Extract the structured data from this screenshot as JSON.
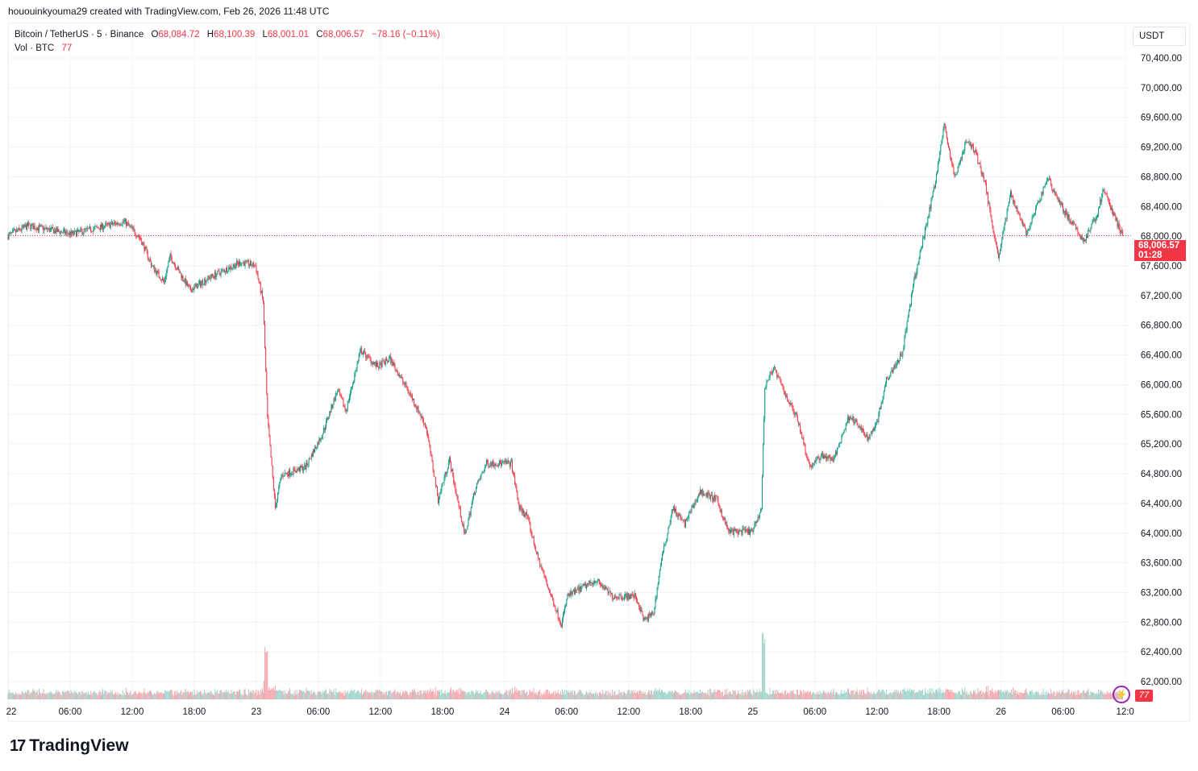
{
  "header": {
    "credit": "hououinkyouma29 created with TradingView.com, Feb 26, 2026 11:48 UTC"
  },
  "legend": {
    "symbol": "Bitcoin / TetherUS · 5 · Binance",
    "o_label": "O",
    "open": "68,084.72",
    "h_label": "H",
    "high": "68,100.39",
    "l_label": "L",
    "low": "68,001.01",
    "c_label": "C",
    "close": "68,006.57",
    "change": "−78.16 (−0.11%)",
    "vol_label": "Vol · BTC",
    "vol_value": "77"
  },
  "axis": {
    "currency": "USDT",
    "last_price": "68,006.57",
    "countdown": "01:28",
    "vol_badge": "77",
    "alert_icon": "lightning-icon"
  },
  "colors": {
    "up": "#089981",
    "down": "#f23645",
    "vol_up": "#9fd4cb",
    "vol_down": "#f5a6ad",
    "grid": "#f0f3fa"
  },
  "footer": {
    "logo_text": "TradingView"
  },
  "chart_data": {
    "type": "candlestick",
    "interval": "5m",
    "ylim": [
      61800,
      70600
    ],
    "y_ticks": [
      "70,400.00",
      "70,000.00",
      "69,600.00",
      "69,200.00",
      "68,800.00",
      "68,400.00",
      "68,000.00",
      "67,600.00",
      "67,200.00",
      "66,800.00",
      "66,400.00",
      "66,000.00",
      "65,600.00",
      "65,200.00",
      "64,800.00",
      "64,400.00",
      "64,000.00",
      "63,600.00",
      "63,200.00",
      "62,800.00",
      "62,400.00",
      "62,000.00"
    ],
    "x_ticks": [
      {
        "label": "22",
        "t": "02-22 00:00"
      },
      {
        "label": "06:00",
        "t": "02-22 06:00"
      },
      {
        "label": "12:00",
        "t": "02-22 12:00"
      },
      {
        "label": "18:00",
        "t": "02-22 18:00"
      },
      {
        "label": "23",
        "t": "02-23 00:00"
      },
      {
        "label": "06:00",
        "t": "02-23 06:00"
      },
      {
        "label": "12:00",
        "t": "02-23 12:00"
      },
      {
        "label": "18:00",
        "t": "02-23 18:00"
      },
      {
        "label": "24",
        "t": "02-24 00:00"
      },
      {
        "label": "06:00",
        "t": "02-24 06:00"
      },
      {
        "label": "12:00",
        "t": "02-24 12:00"
      },
      {
        "label": "18:00",
        "t": "02-24 18:00"
      },
      {
        "label": "25",
        "t": "02-25 00:00"
      },
      {
        "label": "06:00",
        "t": "02-25 06:00"
      },
      {
        "label": "12:00",
        "t": "02-25 12:00"
      },
      {
        "label": "18:00",
        "t": "02-25 18:00"
      },
      {
        "label": "26",
        "t": "02-26 00:00"
      },
      {
        "label": "06:00",
        "t": "02-26 06:00"
      },
      {
        "label": "12:0",
        "t": "02-26 12:00"
      }
    ],
    "last_close": 68006.57,
    "price_path": [
      [
        "02-22 00:00",
        68000
      ],
      [
        "02-22 02:00",
        68140
      ],
      [
        "02-22 06:15",
        68030
      ],
      [
        "02-22 11:20",
        68200
      ],
      [
        "02-22 12:50",
        67980
      ],
      [
        "02-22 14:00",
        67600
      ],
      [
        "02-22 15:10",
        67380
      ],
      [
        "02-22 15:45",
        67730
      ],
      [
        "02-22 17:40",
        67270
      ],
      [
        "02-22 19:30",
        67440
      ],
      [
        "02-22 22:35",
        67650
      ],
      [
        "02-23 00:00",
        67600
      ],
      [
        "02-23 00:45",
        67110
      ],
      [
        "02-23 01:10",
        65540
      ],
      [
        "02-23 01:55",
        64340
      ],
      [
        "02-23 02:30",
        64780
      ],
      [
        "02-23 04:50",
        64890
      ],
      [
        "02-23 06:25",
        65320
      ],
      [
        "02-23 07:55",
        65920
      ],
      [
        "02-23 08:45",
        65650
      ],
      [
        "02-23 10:10",
        66460
      ],
      [
        "02-23 11:50",
        66240
      ],
      [
        "02-23 13:00",
        66350
      ],
      [
        "02-23 15:00",
        65860
      ],
      [
        "02-23 16:30",
        65430
      ],
      [
        "02-23 17:40",
        64450
      ],
      [
        "02-23 18:45",
        64990
      ],
      [
        "02-23 20:15",
        63960
      ],
      [
        "02-23 21:10",
        64560
      ],
      [
        "02-23 22:20",
        64940
      ],
      [
        "02-24 00:45",
        64940
      ],
      [
        "02-24 01:30",
        64340
      ],
      [
        "02-24 02:15",
        64230
      ],
      [
        "02-24 03:15",
        63690
      ],
      [
        "02-24 04:35",
        63150
      ],
      [
        "02-24 05:35",
        62770
      ],
      [
        "02-24 06:10",
        63150
      ],
      [
        "02-24 08:55",
        63370
      ],
      [
        "02-24 10:30",
        63150
      ],
      [
        "02-24 12:45",
        63150
      ],
      [
        "02-24 13:35",
        62820
      ],
      [
        "02-24 14:30",
        62930
      ],
      [
        "02-24 15:10",
        63580
      ],
      [
        "02-24 16:20",
        64340
      ],
      [
        "02-24 17:30",
        64120
      ],
      [
        "02-24 19:00",
        64560
      ],
      [
        "02-24 20:35",
        64450
      ],
      [
        "02-24 21:45",
        64020
      ],
      [
        "02-25 00:05",
        64020
      ],
      [
        "02-25 00:55",
        64340
      ],
      [
        "02-25 01:15",
        65970
      ],
      [
        "02-25 02:05",
        66240
      ],
      [
        "02-25 03:15",
        65860
      ],
      [
        "02-25 04:25",
        65540
      ],
      [
        "02-25 05:35",
        64890
      ],
      [
        "02-25 06:45",
        65050
      ],
      [
        "02-25 07:55",
        64990
      ],
      [
        "02-25 09:25",
        65590
      ],
      [
        "02-25 11:15",
        65270
      ],
      [
        "02-25 12:10",
        65540
      ],
      [
        "02-25 13:00",
        66080
      ],
      [
        "02-25 14:30",
        66410
      ],
      [
        "02-25 15:40",
        67390
      ],
      [
        "02-25 16:50",
        68140
      ],
      [
        "02-25 17:40",
        68690
      ],
      [
        "02-25 18:35",
        69500
      ],
      [
        "02-25 19:35",
        68790
      ],
      [
        "02-25 20:45",
        69280
      ],
      [
        "02-25 21:30",
        69170
      ],
      [
        "02-25 22:30",
        68740
      ],
      [
        "02-25 23:50",
        67710
      ],
      [
        "02-26 01:00",
        68580
      ],
      [
        "02-26 02:35",
        68030
      ],
      [
        "02-26 04:35",
        68790
      ],
      [
        "02-26 06:05",
        68360
      ],
      [
        "02-26 08:05",
        67930
      ],
      [
        "02-26 09:15",
        68250
      ],
      [
        "02-26 10:00",
        68630
      ],
      [
        "02-26 11:48",
        68006.57
      ]
    ]
  }
}
